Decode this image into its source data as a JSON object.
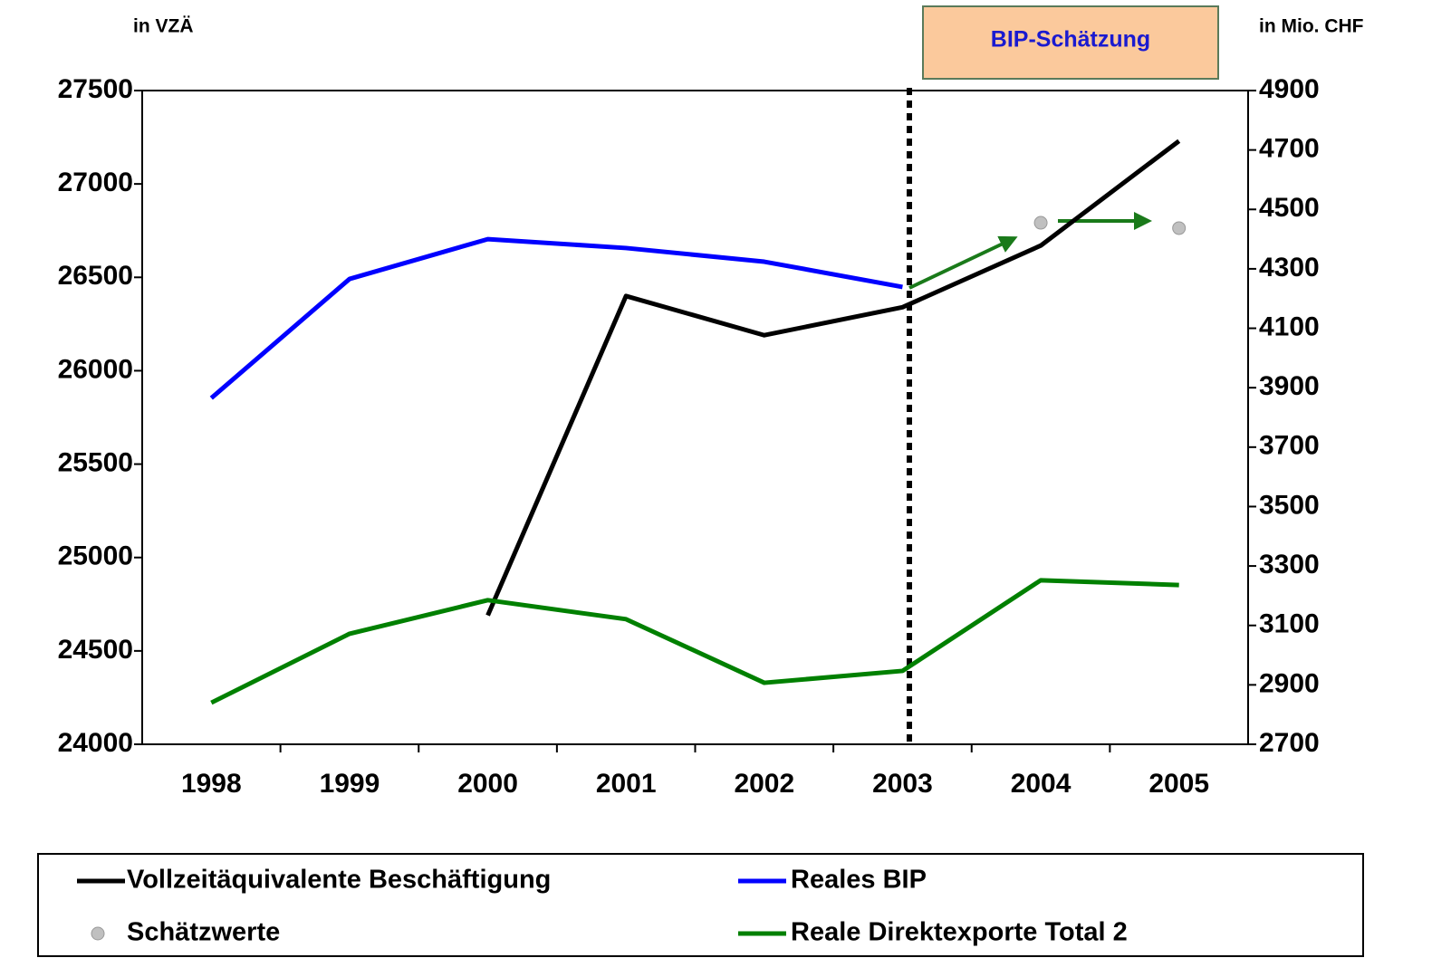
{
  "chart_data": {
    "type": "line",
    "y_label": "in VZÄ",
    "y2_label": "in Mio. CHF",
    "annotation": "BIP-Schätzung",
    "categories": [
      "1998",
      "1999",
      "2000",
      "2001",
      "2002",
      "2003",
      "2004",
      "2005"
    ],
    "series": [
      {
        "name": "Vollzeitäquivalente Beschäftigung",
        "color": "#000000",
        "values": [
          null,
          null,
          24690,
          26400,
          26190,
          26340,
          26670,
          27230
        ]
      },
      {
        "name": "Reales BIP",
        "color": "#0000ff",
        "axis": "y2",
        "values": [
          3865,
          4266,
          4400,
          4370,
          4324,
          4239,
          null,
          null
        ]
      },
      {
        "name": "Schätzwerte",
        "color": "#c0c0c0",
        "axis": "y2",
        "markers_only": true,
        "values": [
          null,
          null,
          null,
          null,
          null,
          null,
          4455,
          4437
        ]
      },
      {
        "name": "Reale Direktexporte Total 2",
        "color": "#008000",
        "axis": "y2",
        "values": [
          2840,
          3072,
          3185,
          3121,
          2907,
          2947,
          3252,
          3236
        ]
      }
    ],
    "ylim": [
      24000,
      27500
    ],
    "yticks": [
      24000,
      24500,
      25000,
      25500,
      26000,
      26500,
      27000,
      27500
    ],
    "y2lim": [
      2700,
      4900
    ],
    "y2ticks": [
      2700,
      2900,
      3100,
      3300,
      3500,
      3700,
      3900,
      4100,
      4300,
      4500,
      4700,
      4900
    ]
  }
}
